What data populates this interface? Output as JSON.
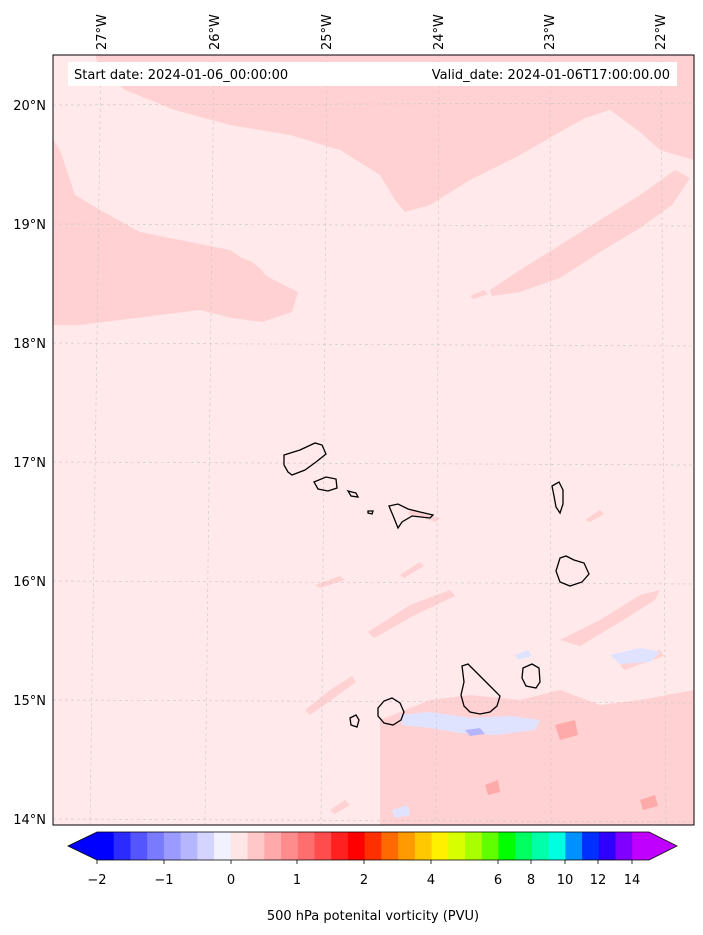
{
  "header": {
    "start_date": "Start date: 2024-01-06_00:00:00",
    "valid_date": "Valid_date: 2024-01-06T17:00:00.00"
  },
  "map": {
    "lon_labels": [
      "27°W",
      "26°W",
      "25°W",
      "24°W",
      "23°W",
      "22°W"
    ],
    "lat_labels": [
      "20°N",
      "19°N",
      "18°N",
      "17°N",
      "16°N",
      "15°N",
      "14°N"
    ],
    "background_color": "#ffe9ea",
    "field_color": "#ffd1d3",
    "negative_color": "#dfe3ff",
    "grid": true
  },
  "colorbar": {
    "label": "500 hPa potenital vorticity (PVU)",
    "tick_labels": [
      "−2",
      "−1",
      "0",
      "1",
      "2",
      "4",
      "6",
      "8",
      "10",
      "12",
      "14"
    ],
    "colors": [
      "#0000ff",
      "#2b2bff",
      "#5555ff",
      "#7a7aff",
      "#9a9aff",
      "#b6b6ff",
      "#d4d4ff",
      "#f2f2ff",
      "#ffe6e6",
      "#ffc8c8",
      "#ffaaaa",
      "#ff8c8c",
      "#ff6e6e",
      "#ff4d4d",
      "#ff2020",
      "#ff0000",
      "#ff3000",
      "#ff6a00",
      "#ff9a00",
      "#ffc800",
      "#fff000",
      "#d8ff00",
      "#a8ff00",
      "#60ff00",
      "#00ff00",
      "#00ff60",
      "#00ffa8",
      "#00ffe0",
      "#0090ff",
      "#0030ff",
      "#3000ff",
      "#8000ff",
      "#c000ff"
    ],
    "extend": "both"
  }
}
